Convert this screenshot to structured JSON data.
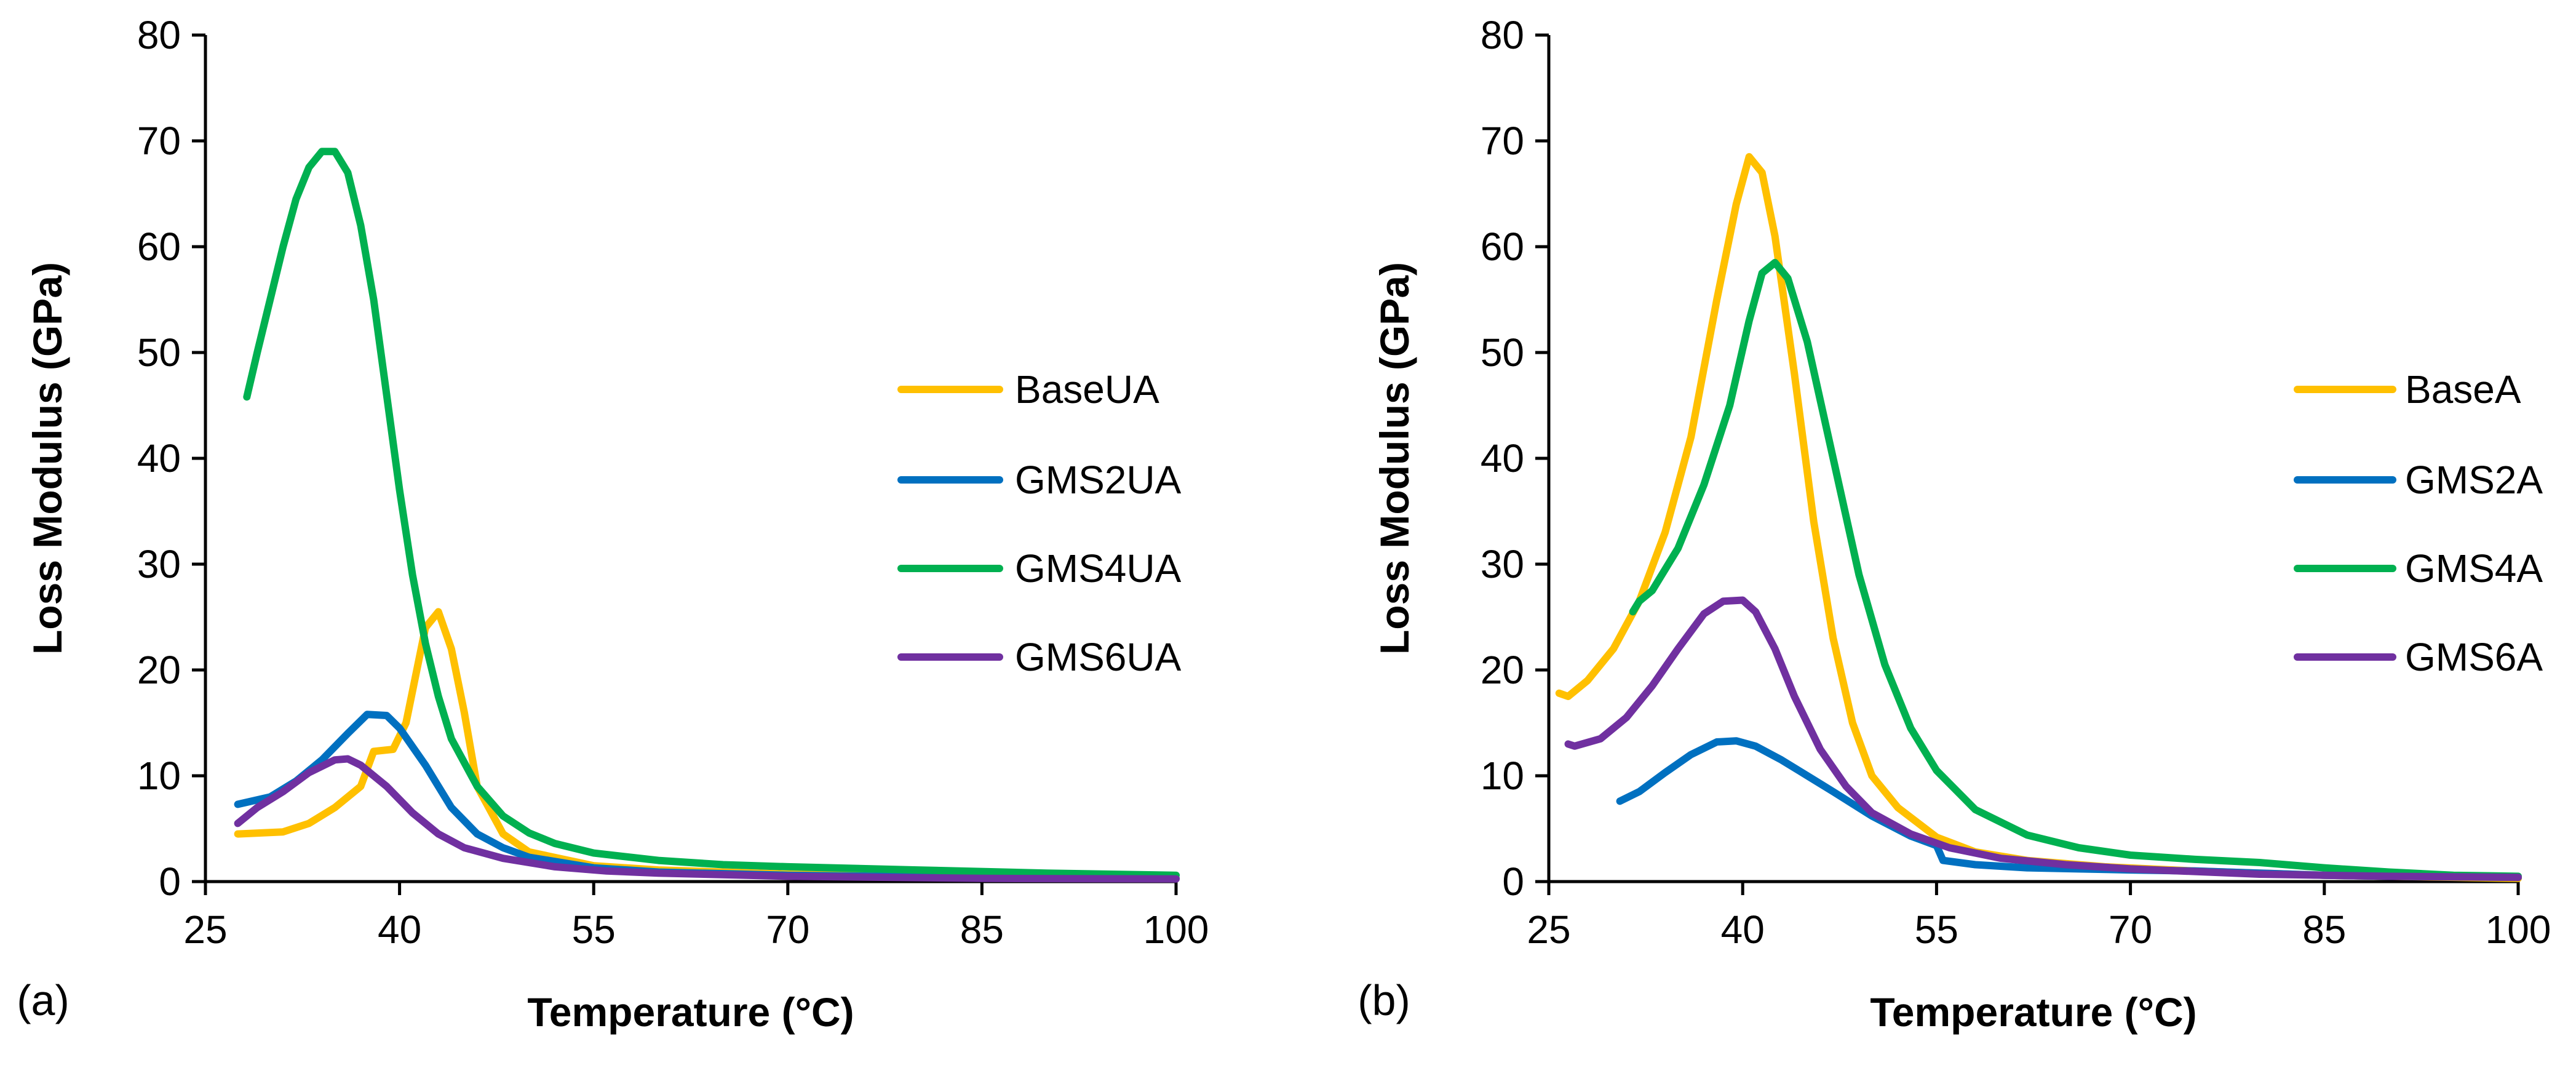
{
  "colors": {
    "BaseUA": "#ffc000",
    "GMS2UA": "#0070c0",
    "GMS4UA": "#00b050",
    "GMS6UA": "#7030a0",
    "BaseA": "#ffc000",
    "GMS2A": "#0070c0",
    "GMS4A": "#00b050",
    "GMS6A": "#7030a0"
  },
  "chart_data": [
    {
      "type": "line",
      "panel_label": "(a)",
      "xlabel": "Temperature (°C)",
      "ylabel": "Loss Modulus (GPa)",
      "xlim": [
        25,
        100
      ],
      "ylim": [
        0,
        80
      ],
      "xticks": [
        25,
        40,
        55,
        70,
        85,
        100
      ],
      "yticks": [
        0,
        10,
        20,
        30,
        40,
        50,
        60,
        70,
        80
      ],
      "grid": false,
      "legend_position": "right",
      "series": [
        {
          "name": "BaseUA",
          "color": "#ffc000",
          "x": [
            27.5,
            31,
            33,
            35,
            37,
            38,
            39.5,
            40.5,
            42,
            43,
            44,
            45,
            46,
            48,
            50,
            55,
            60,
            70,
            85,
            100
          ],
          "y": [
            4.5,
            4.7,
            5.5,
            7,
            9,
            12.3,
            12.5,
            15,
            24,
            25.5,
            22,
            16,
            9,
            4.5,
            2.8,
            1.5,
            1.1,
            0.7,
            0.4,
            0.3
          ]
        },
        {
          "name": "GMS2UA",
          "color": "#0070c0",
          "x": [
            27.5,
            30,
            32,
            34,
            36,
            37.5,
            39,
            40,
            42,
            44,
            46,
            48,
            50,
            55,
            60,
            70,
            85,
            100
          ],
          "y": [
            7.3,
            8,
            9.5,
            11.5,
            14,
            15.8,
            15.7,
            14.5,
            11,
            7,
            4.5,
            3.2,
            2.3,
            1.3,
            0.9,
            0.6,
            0.4,
            0.3
          ]
        },
        {
          "name": "GMS4UA",
          "color": "#00b050",
          "x": [
            28.2,
            29,
            30,
            31,
            32,
            33,
            34,
            35,
            36,
            37,
            38,
            39,
            40,
            41,
            42,
            43,
            44,
            46,
            48,
            50,
            52,
            55,
            60,
            65,
            70,
            80,
            90,
            100
          ],
          "y": [
            45.8,
            50,
            55,
            60,
            64.5,
            67.5,
            69,
            69,
            67,
            62,
            55,
            46,
            37,
            29,
            22.5,
            17.5,
            13.5,
            9,
            6.2,
            4.6,
            3.6,
            2.7,
            2.0,
            1.6,
            1.4,
            1.1,
            0.8,
            0.6
          ]
        },
        {
          "name": "GMS6UA",
          "color": "#7030a0",
          "x": [
            27.5,
            29,
            31,
            33,
            35,
            36,
            37,
            39,
            41,
            43,
            45,
            48,
            52,
            56,
            60,
            70,
            85,
            100
          ],
          "y": [
            5.5,
            7,
            8.5,
            10.3,
            11.5,
            11.6,
            11,
            9,
            6.5,
            4.5,
            3.2,
            2.2,
            1.4,
            1.0,
            0.8,
            0.5,
            0.3,
            0.25
          ]
        }
      ]
    },
    {
      "type": "line",
      "panel_label": "(b)",
      "xlabel": "Temperature (°C)",
      "ylabel": "Loss Modulus (GPa)",
      "xlim": [
        25,
        100
      ],
      "ylim": [
        0,
        80
      ],
      "xticks": [
        25,
        40,
        55,
        70,
        85,
        100
      ],
      "yticks": [
        0,
        10,
        20,
        30,
        40,
        50,
        60,
        70,
        80
      ],
      "grid": false,
      "legend_position": "right",
      "series": [
        {
          "name": "BaseA",
          "color": "#ffc000",
          "x": [
            25.8,
            26.5,
            28,
            30,
            32,
            34,
            36,
            38,
            39.5,
            40.5,
            41.5,
            42.5,
            44,
            45.5,
            47,
            48.5,
            50,
            52,
            55,
            58,
            62,
            68,
            75,
            85,
            100
          ],
          "y": [
            17.8,
            17.5,
            19,
            22,
            26.5,
            33,
            42,
            55,
            64,
            68.5,
            67,
            61,
            48,
            34,
            23,
            15,
            10,
            7,
            4.2,
            2.8,
            2.0,
            1.4,
            1.0,
            0.6,
            0.3
          ]
        },
        {
          "name": "GMS2A",
          "color": "#0070c0",
          "x": [
            30.5,
            32,
            34,
            36,
            38,
            39.5,
            41,
            43,
            45,
            47,
            50,
            53,
            55,
            55.5,
            58,
            62,
            66,
            70,
            75,
            80,
            85,
            90,
            100
          ],
          "y": [
            7.6,
            8.5,
            10.3,
            12,
            13.2,
            13.3,
            12.8,
            11.5,
            10,
            8.5,
            6.2,
            4.3,
            3.4,
            2.0,
            1.6,
            1.3,
            1.2,
            1.1,
            1.0,
            0.8,
            0.6,
            0.5,
            0.4
          ]
        },
        {
          "name": "GMS4A",
          "color": "#00b050",
          "x": [
            31.5,
            32,
            33,
            35,
            37,
            39,
            40.5,
            41.5,
            42.5,
            43.5,
            45,
            47,
            49,
            51,
            53,
            55,
            58,
            62,
            66,
            70,
            75,
            80,
            85,
            90,
            95,
            100
          ],
          "y": [
            25.5,
            26.5,
            27.5,
            31.5,
            37.5,
            45,
            53,
            57.5,
            58.5,
            57,
            51,
            40,
            29,
            20.5,
            14.5,
            10.5,
            6.8,
            4.4,
            3.2,
            2.5,
            2.1,
            1.8,
            1.3,
            0.9,
            0.6,
            0.5
          ]
        },
        {
          "name": "GMS6A",
          "color": "#7030a0",
          "x": [
            26.5,
            27,
            29,
            31,
            33,
            35,
            37,
            38.5,
            40,
            41,
            42.5,
            44,
            46,
            48,
            50,
            53,
            56,
            60,
            65,
            70,
            80,
            90,
            100
          ],
          "y": [
            13,
            12.8,
            13.5,
            15.5,
            18.5,
            22,
            25.3,
            26.5,
            26.6,
            25.5,
            22,
            17.5,
            12.5,
            9,
            6.5,
            4.5,
            3.2,
            2.2,
            1.6,
            1.2,
            0.7,
            0.5,
            0.4
          ]
        }
      ]
    }
  ]
}
